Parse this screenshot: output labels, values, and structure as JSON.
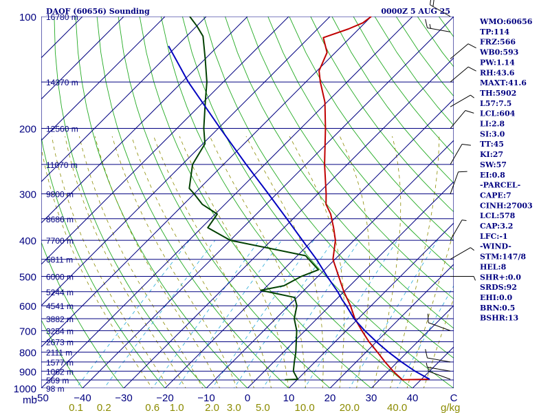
{
  "header": {
    "title": "DAOF (60656) Sounding",
    "datetime": "0000Z  5 AUG 25"
  },
  "indices": [
    "WMO:60656",
    "TP:114",
    "FRZ:566",
    "WB0:593",
    "PW:1.14",
    "RH:43.6",
    "MAXT:41.6",
    "TH:5902",
    "L57:7.5",
    "LCL:604",
    "LI:2.8",
    "SI:3.0",
    "TT:45",
    "KI:27",
    "SW:57",
    "EI:0.8",
    "-PARCEL-",
    "CAPE:7",
    "CINH:27003",
    "LCL:578",
    "CAP:3.2",
    "LFC:-1",
    "-WIND-",
    "STM:147/8",
    "HEL:8",
    "SHR+:0.0",
    "SRDS:92",
    "EHI:0.0",
    "BRN:0.5",
    "BSHR:13"
  ],
  "chart_data": {
    "type": "line",
    "title": "DAOF (60656) Sounding",
    "xlabel": "",
    "ylabel": "mb",
    "x_unit": "C",
    "mixing_ratio_unit": "g/kg",
    "xlim": [
      -50,
      50
    ],
    "ylim": [
      1000,
      100
    ],
    "pressure_ticks": [
      100,
      200,
      300,
      400,
      500,
      600,
      700,
      800,
      900,
      1000
    ],
    "pressure_tick_labels": [
      "100",
      "200",
      "300",
      "400",
      "500",
      "600",
      "700",
      "800",
      "900",
      "1000"
    ],
    "temperature_ticks": [
      -50,
      -40,
      -30,
      -20,
      -10,
      0,
      10,
      20,
      30,
      40,
      50
    ],
    "temperature_tick_labels": [
      "-50",
      "−40",
      "−30",
      "−20",
      "−10",
      "0",
      "10",
      "20",
      "30",
      "40",
      "C"
    ],
    "mixing_ratio_labels": [
      {
        "value": 0.1,
        "label": "0.1"
      },
      {
        "value": 0.2,
        "label": "0.2"
      },
      {
        "value": 0.6,
        "label": "0.6"
      },
      {
        "value": 1.0,
        "label": "1.0"
      },
      {
        "value": 2.0,
        "label": "2.0"
      },
      {
        "value": 3.0,
        "label": "3.0"
      },
      {
        "value": 5.0,
        "label": "5.0"
      },
      {
        "value": 10.0,
        "label": "10.0"
      },
      {
        "value": 20.0,
        "label": "20.0"
      },
      {
        "value": 40.0,
        "label": "40.0"
      }
    ],
    "height_levels": [
      {
        "p": 100,
        "label": "16780 m"
      },
      {
        "p": 150,
        "label": "14370 m"
      },
      {
        "p": 200,
        "label": "12560 m"
      },
      {
        "p": 250,
        "label": "11070 m"
      },
      {
        "p": 300,
        "label": "9800 m"
      },
      {
        "p": 350,
        "label": "8686 m"
      },
      {
        "p": 400,
        "label": "7700 m"
      },
      {
        "p": 450,
        "label": "6811 m"
      },
      {
        "p": 500,
        "label": "6000 m"
      },
      {
        "p": 550,
        "label": "5244 m"
      },
      {
        "p": 600,
        "label": "4541 m"
      },
      {
        "p": 650,
        "label": "3882 m"
      },
      {
        "p": 700,
        "label": "3254 m"
      },
      {
        "p": 750,
        "label": "2673 m"
      },
      {
        "p": 800,
        "label": "2111 m"
      },
      {
        "p": 850,
        "label": "1577 m"
      },
      {
        "p": 900,
        "label": "1062 m"
      },
      {
        "p": 950,
        "label": "569 m"
      },
      {
        "p": 1000,
        "label": "98 m"
      }
    ],
    "series": [
      {
        "role": "temperature",
        "color": "#c00000",
        "points": [
          {
            "p": 946,
            "t": 42.0
          },
          {
            "p": 949,
            "t": 35.5
          },
          {
            "p": 900,
            "t": 31.2
          },
          {
            "p": 850,
            "t": 27.0
          },
          {
            "p": 800,
            "t": 22.8
          },
          {
            "p": 750,
            "t": 18.2
          },
          {
            "p": 700,
            "t": 13.8
          },
          {
            "p": 650,
            "t": 9.2
          },
          {
            "p": 600,
            "t": 5.0
          },
          {
            "p": 550,
            "t": 0.0
          },
          {
            "p": 500,
            "t": -5.0
          },
          {
            "p": 450,
            "t": -10.5
          },
          {
            "p": 400,
            "t": -14.5
          },
          {
            "p": 370,
            "t": -18.0
          },
          {
            "p": 340,
            "t": -22.0
          },
          {
            "p": 320,
            "t": -25.5
          },
          {
            "p": 300,
            "t": -28.0
          },
          {
            "p": 250,
            "t": -35.5
          },
          {
            "p": 200,
            "t": -44.0
          },
          {
            "p": 170,
            "t": -50.5
          },
          {
            "p": 150,
            "t": -56.5
          },
          {
            "p": 140,
            "t": -59.5
          },
          {
            "p": 125,
            "t": -62.0
          },
          {
            "p": 114,
            "t": -66.5
          },
          {
            "p": 108,
            "t": -62.5
          },
          {
            "p": 104,
            "t": -60.5
          },
          {
            "p": 100,
            "t": -60.0
          }
        ]
      },
      {
        "role": "dewpoint",
        "color": "#004000",
        "points": [
          {
            "p": 949,
            "t": 7.0
          },
          {
            "p": 946,
            "t": 10.0
          },
          {
            "p": 900,
            "t": 7.0
          },
          {
            "p": 850,
            "t": 5.0
          },
          {
            "p": 800,
            "t": 3.0
          },
          {
            "p": 700,
            "t": -2.0
          },
          {
            "p": 650,
            "t": -5.5
          },
          {
            "p": 600,
            "t": -8.0
          },
          {
            "p": 570,
            "t": -10.5
          },
          {
            "p": 545,
            "t": -20.5
          },
          {
            "p": 530,
            "t": -16.0
          },
          {
            "p": 500,
            "t": -14.0
          },
          {
            "p": 480,
            "t": -11.5
          },
          {
            "p": 440,
            "t": -18.0
          },
          {
            "p": 400,
            "t": -40.0
          },
          {
            "p": 370,
            "t": -48.5
          },
          {
            "p": 340,
            "t": -49.5
          },
          {
            "p": 320,
            "t": -55.5
          },
          {
            "p": 300,
            "t": -60.0
          },
          {
            "p": 290,
            "t": -62.5
          },
          {
            "p": 250,
            "t": -67.5
          },
          {
            "p": 220,
            "t": -69.5
          },
          {
            "p": 200,
            "t": -73.5
          },
          {
            "p": 170,
            "t": -79.5
          },
          {
            "p": 150,
            "t": -84.0
          },
          {
            "p": 130,
            "t": -90.0
          },
          {
            "p": 113,
            "t": -96.0
          },
          {
            "p": 106,
            "t": -100.0
          },
          {
            "p": 100,
            "t": -104.0
          }
        ]
      },
      {
        "role": "parcel",
        "color": "#0000c0",
        "points": [
          {
            "p": 946,
            "t": 42.0
          },
          {
            "p": 900,
            "t": 36.5
          },
          {
            "p": 850,
            "t": 31.0
          },
          {
            "p": 800,
            "t": 25.5
          },
          {
            "p": 750,
            "t": 20.0
          },
          {
            "p": 700,
            "t": 14.5
          },
          {
            "p": 650,
            "t": 9.0
          },
          {
            "p": 600,
            "t": 4.0
          },
          {
            "p": 578,
            "t": 1.5
          },
          {
            "p": 550,
            "t": -1.5
          },
          {
            "p": 500,
            "t": -7.8
          },
          {
            "p": 450,
            "t": -14.5
          },
          {
            "p": 400,
            "t": -22.5
          },
          {
            "p": 350,
            "t": -31.5
          },
          {
            "p": 300,
            "t": -42.0
          },
          {
            "p": 250,
            "t": -54.5
          },
          {
            "p": 200,
            "t": -69.5
          },
          {
            "p": 150,
            "t": -88.5
          },
          {
            "p": 120,
            "t": -102.0
          }
        ]
      }
    ],
    "wind_barbs": [
      {
        "p": 946,
        "dir": 290,
        "spd": 5
      },
      {
        "p": 900,
        "dir": 280,
        "spd": 5
      },
      {
        "p": 850,
        "dir": 280,
        "spd": 10
      },
      {
        "p": 700,
        "dir": 290,
        "spd": 10
      },
      {
        "p": 500,
        "dir": 90,
        "spd": 5
      },
      {
        "p": 450,
        "dir": 60,
        "spd": 5
      },
      {
        "p": 400,
        "dir": 30,
        "spd": 5
      },
      {
        "p": 300,
        "dir": 20,
        "spd": 10
      },
      {
        "p": 250,
        "dir": 30,
        "spd": 10
      },
      {
        "p": 200,
        "dir": 40,
        "spd": 10
      },
      {
        "p": 175,
        "dir": 60,
        "spd": 5
      },
      {
        "p": 150,
        "dir": 50,
        "spd": 10
      },
      {
        "p": 130,
        "dir": 50,
        "spd": 10
      },
      {
        "p": 110,
        "dir": 280,
        "spd": 15
      },
      {
        "p": 100,
        "dir": 300,
        "spd": 20
      }
    ]
  }
}
